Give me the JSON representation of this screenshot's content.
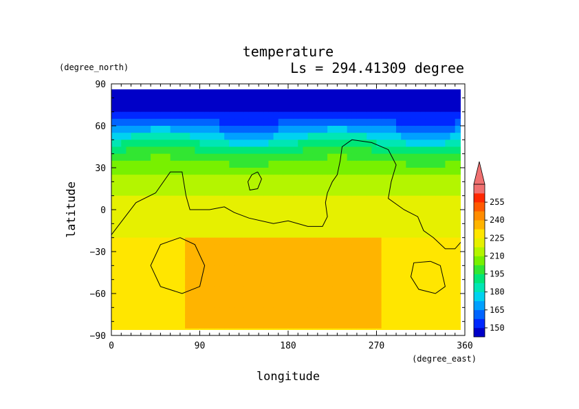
{
  "chart_data": {
    "type": "heatmap",
    "title": "temperature",
    "subtitle": "Ls = 294.41309 degree",
    "xlabel": "longitude",
    "ylabel": "latitude",
    "x_units": "(degree_east)",
    "y_units": "(degree_north)",
    "xlim": [
      0,
      360
    ],
    "ylim": [
      -90,
      90
    ],
    "x_ticks": [
      "0",
      "90",
      "180",
      "270",
      "360"
    ],
    "y_ticks": [
      "90",
      "60",
      "30",
      "0",
      "−30",
      "−60",
      "−90"
    ],
    "colorbar": {
      "levels": [
        142.5,
        150,
        157.5,
        165,
        172.5,
        180,
        187.5,
        195,
        202.5,
        210,
        217.5,
        225,
        232.5,
        240,
        247.5,
        255,
        262.5
      ],
      "labels": [
        "150",
        "165",
        "180",
        "195",
        "210",
        "225",
        "240",
        "255"
      ],
      "colors": [
        "#0000c8",
        "#0028ff",
        "#0064ff",
        "#00a0ff",
        "#00d2f0",
        "#00e6b4",
        "#00e678",
        "#32e632",
        "#78f000",
        "#b4f500",
        "#e6f000",
        "#ffe600",
        "#ffb400",
        "#ff8c00",
        "#ff5a00",
        "#ff2800",
        "#f07070"
      ],
      "extend": "max"
    },
    "fields": {
      "lat_profile": [
        {
          "lat": 85,
          "value": 146
        },
        {
          "lat": 70,
          "value": 150
        },
        {
          "lat": 62,
          "value": 160
        },
        {
          "lat": 55,
          "value": 172
        },
        {
          "lat": 48,
          "value": 185
        },
        {
          "lat": 40,
          "value": 197
        },
        {
          "lat": 30,
          "value": 206
        },
        {
          "lat": 20,
          "value": 213
        },
        {
          "lat": 10,
          "value": 218
        },
        {
          "lat": 0,
          "value": 221
        },
        {
          "lat": -10,
          "value": 223
        },
        {
          "lat": -20,
          "value": 225
        },
        {
          "lat": -40,
          "value": 226
        },
        {
          "lat": -60,
          "value": 226
        },
        {
          "lat": -85,
          "value": 225
        }
      ],
      "warm_blobs": [
        {
          "lon": 180,
          "lat": -48,
          "value": 233,
          "extent_lon": [
            75,
            275
          ],
          "extent_lat": [
            -85,
            -20
          ]
        },
        {
          "lon": 168,
          "lat": -32,
          "value": 238,
          "extent_lon": [
            138,
            210
          ],
          "extent_lat": [
            -40,
            -27
          ]
        }
      ]
    },
    "topography_contours": [
      [
        [
          0,
          -18
        ],
        [
          25,
          5
        ],
        [
          45,
          12
        ],
        [
          60,
          27
        ],
        [
          72,
          27
        ],
        [
          76,
          10
        ],
        [
          80,
          0
        ],
        [
          100,
          0
        ],
        [
          115,
          2
        ],
        [
          125,
          -2
        ],
        [
          140,
          -6
        ],
        [
          165,
          -10
        ],
        [
          180,
          -8
        ],
        [
          200,
          -12
        ],
        [
          215,
          -12
        ],
        [
          220,
          -5
        ],
        [
          218,
          5
        ],
        [
          220,
          12
        ],
        [
          225,
          20
        ],
        [
          230,
          25
        ],
        [
          233,
          35
        ],
        [
          235,
          45
        ],
        [
          245,
          50
        ],
        [
          265,
          48
        ],
        [
          282,
          43
        ],
        [
          290,
          32
        ],
        [
          285,
          20
        ],
        [
          282,
          8
        ],
        [
          298,
          0
        ],
        [
          312,
          -5
        ],
        [
          318,
          -15
        ],
        [
          328,
          -20
        ],
        [
          340,
          -28
        ],
        [
          350,
          -28
        ],
        [
          360,
          -20
        ]
      ],
      [
        [
          149,
          27
        ],
        [
          143,
          25
        ],
        [
          139,
          20
        ],
        [
          141,
          14
        ],
        [
          149,
          15
        ],
        [
          153,
          22
        ],
        [
          149,
          27
        ]
      ],
      [
        [
          70,
          -20
        ],
        [
          85,
          -25
        ],
        [
          95,
          -40
        ],
        [
          90,
          -55
        ],
        [
          72,
          -60
        ],
        [
          50,
          -55
        ],
        [
          40,
          -40
        ],
        [
          50,
          -25
        ],
        [
          70,
          -20
        ]
      ],
      [
        [
          325,
          -37
        ],
        [
          335,
          -40
        ],
        [
          340,
          -55
        ],
        [
          330,
          -60
        ],
        [
          313,
          -57
        ],
        [
          305,
          -48
        ],
        [
          308,
          -38
        ],
        [
          325,
          -37
        ]
      ]
    ]
  }
}
